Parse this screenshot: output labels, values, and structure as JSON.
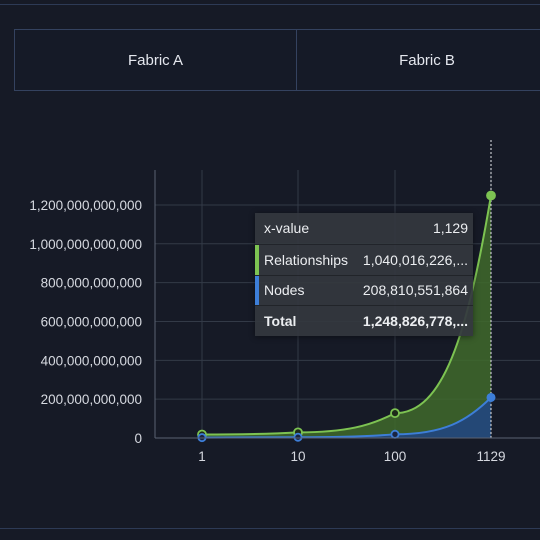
{
  "tabs": [
    {
      "label": "Fabric A"
    },
    {
      "label": "Fabric B"
    }
  ],
  "colors": {
    "background": "#161a26",
    "relationships": "#7dc352",
    "nodes": "#3d7ed8",
    "relationships_fill": "#3f6a2c",
    "nodes_fill": "#23477a",
    "grid": "#333a47",
    "text": "#d6d9e0"
  },
  "chart_data": {
    "type": "area",
    "stacked": true,
    "x": [
      1,
      10,
      100,
      1129
    ],
    "xscale": "log",
    "xticks": [
      "1",
      "10",
      "100",
      "1129"
    ],
    "yticks": [
      "0",
      "200,000,000,000",
      "400,000,000,000",
      "600,000,000,000",
      "800,000,000,000",
      "1,000,000,000,000",
      "1,200,000,000,000"
    ],
    "ylim": [
      0,
      1380000000000
    ],
    "series": [
      {
        "name": "Nodes",
        "values": [
          2000000000,
          4000000000,
          19000000000,
          208810551864
        ]
      },
      {
        "name": "Relationships",
        "values": [
          16000000000,
          25000000000,
          109000000000,
          1040016226000
        ]
      }
    ],
    "totals": [
      18000000000,
      29000000000,
      128000000000,
      1248826778000
    ],
    "crosshair_x": 1129,
    "grid": true,
    "title": "",
    "xlabel": "",
    "ylabel": ""
  },
  "tooltip": {
    "header_label": "x-value",
    "header_value": "1,129",
    "rows": [
      {
        "label": "Relationships",
        "value": "1,040,016,226,..."
      },
      {
        "label": "Nodes",
        "value": "208,810,551,864"
      }
    ],
    "total_label": "Total",
    "total_value": "1,248,826,778,..."
  }
}
